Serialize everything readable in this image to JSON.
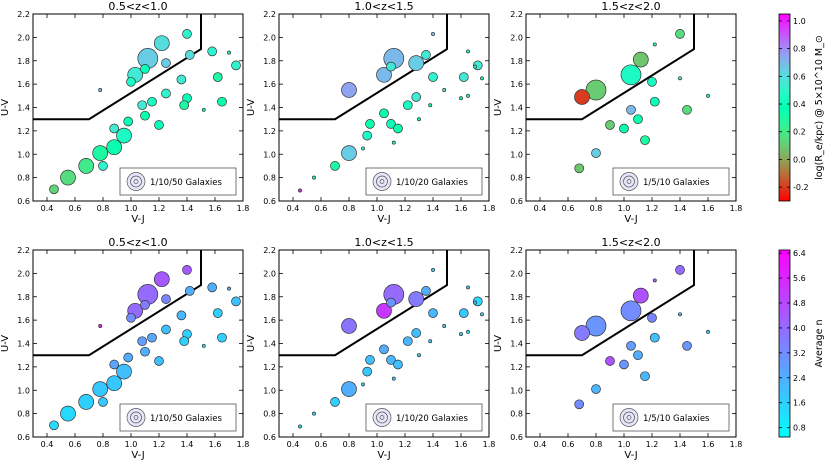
{
  "chart_data": {
    "type": "scatter",
    "figure": "UVJ diagram grid of stacked galaxy bins",
    "xlabel": "V-J",
    "ylabel": "U-V",
    "xlim": [
      0.3,
      1.8
    ],
    "ylim": [
      0.6,
      2.2
    ],
    "xticks": [
      "0.4",
      "0.6",
      "0.8",
      "1.0",
      "1.2",
      "1.4",
      "1.6",
      "1.8"
    ],
    "yticks": [
      "0.6",
      "0.8",
      "1.0",
      "1.2",
      "1.4",
      "1.6",
      "1.8",
      "2.0",
      "2.2"
    ],
    "quiescent_boundary": [
      [
        0.3,
        1.3
      ],
      [
        0.7,
        1.3
      ],
      [
        1.5,
        1.9
      ],
      [
        1.5,
        2.2
      ]
    ],
    "panels": [
      {
        "id": "top-1",
        "title": "0.5<z<1.0",
        "legend": "1/10/50 Galaxies",
        "row": 0,
        "col": 0,
        "cbar": "size",
        "points": [
          [
            0.45,
            0.7,
            1,
            0.12
          ],
          [
            0.55,
            0.8,
            2,
            0.15
          ],
          [
            0.68,
            0.9,
            2,
            0.2
          ],
          [
            0.78,
            1.01,
            2,
            0.3
          ],
          [
            0.88,
            1.06,
            2,
            0.35
          ],
          [
            0.95,
            1.16,
            2,
            0.45
          ],
          [
            0.8,
            0.9,
            1,
            0.5
          ],
          [
            0.98,
            1.28,
            1,
            0.4
          ],
          [
            0.88,
            1.22,
            1,
            0.55
          ],
          [
            1.1,
            1.33,
            1,
            0.35
          ],
          [
            1.15,
            1.45,
            1,
            0.45
          ],
          [
            1.08,
            1.42,
            1,
            0.55
          ],
          [
            1.2,
            1.25,
            1,
            0.4
          ],
          [
            1.25,
            1.52,
            1,
            0.5
          ],
          [
            1.4,
            1.48,
            1,
            0.4
          ],
          [
            1.36,
            1.64,
            1,
            0.55
          ],
          [
            1.38,
            1.42,
            1,
            0.3
          ],
          [
            1.52,
            1.38,
            0,
            0.35
          ],
          [
            1.65,
            1.45,
            1,
            0.35
          ],
          [
            1.03,
            1.68,
            2,
            0.55
          ],
          [
            1.0,
            1.62,
            1,
            0.45
          ],
          [
            1.1,
            1.73,
            1,
            0.4
          ],
          [
            1.22,
            1.95,
            2,
            0.6
          ],
          [
            1.25,
            1.78,
            1,
            0.65
          ],
          [
            1.12,
            1.82,
            3,
            0.65
          ],
          [
            1.42,
            1.85,
            1,
            0.6
          ],
          [
            1.4,
            2.03,
            1,
            0.5
          ],
          [
            1.58,
            1.88,
            1,
            0.5
          ],
          [
            1.7,
            1.87,
            0,
            0.45
          ],
          [
            1.75,
            1.76,
            1,
            0.5
          ],
          [
            1.62,
            1.66,
            1,
            0.3
          ],
          [
            0.78,
            1.55,
            0,
            0.7
          ]
        ]
      },
      {
        "id": "top-2",
        "title": "1.0<z<1.5",
        "legend": "1/10/20 Galaxies",
        "row": 0,
        "col": 1,
        "cbar": "size",
        "points": [
          [
            0.45,
            0.69,
            0,
            1.0
          ],
          [
            0.55,
            0.8,
            0,
            0.4
          ],
          [
            0.7,
            0.9,
            1,
            0.3
          ],
          [
            0.8,
            1.01,
            2,
            0.65
          ],
          [
            0.9,
            1.05,
            0,
            0.45
          ],
          [
            0.93,
            1.16,
            1,
            0.45
          ],
          [
            0.95,
            1.26,
            1,
            0.35
          ],
          [
            1.05,
            1.35,
            1,
            0.35
          ],
          [
            1.1,
            1.26,
            1,
            0.4
          ],
          [
            1.12,
            1.1,
            0,
            0.3
          ],
          [
            1.15,
            1.22,
            1,
            0.35
          ],
          [
            1.22,
            1.42,
            1,
            0.45
          ],
          [
            1.3,
            1.3,
            0,
            0.35
          ],
          [
            1.28,
            1.49,
            1,
            0.55
          ],
          [
            1.38,
            1.42,
            0,
            0.4
          ],
          [
            1.4,
            1.66,
            1,
            0.5
          ],
          [
            1.48,
            1.55,
            0,
            0.55
          ],
          [
            1.6,
            1.48,
            0,
            0.4
          ],
          [
            1.62,
            1.66,
            1,
            0.55
          ],
          [
            1.7,
            1.75,
            0,
            0.45
          ],
          [
            1.72,
            1.76,
            1,
            0.55
          ],
          [
            1.75,
            1.65,
            0,
            0.4
          ],
          [
            1.65,
            1.5,
            0,
            0.3
          ],
          [
            1.05,
            1.68,
            2,
            0.7
          ],
          [
            1.1,
            1.75,
            1,
            0.55
          ],
          [
            1.12,
            1.82,
            3,
            0.7
          ],
          [
            1.28,
            1.78,
            2,
            0.65
          ],
          [
            1.35,
            1.85,
            1,
            0.55
          ],
          [
            1.4,
            2.03,
            0,
            0.7
          ],
          [
            1.65,
            1.88,
            0,
            0.45
          ],
          [
            0.8,
            1.55,
            2,
            0.75
          ]
        ]
      },
      {
        "id": "top-3",
        "title": "1.5<z<2.0",
        "legend": "1/5/10 Galaxies",
        "row": 0,
        "col": 2,
        "cbar": "size",
        "points": [
          [
            0.68,
            0.88,
            1,
            0.08
          ],
          [
            0.8,
            1.01,
            1,
            0.65
          ],
          [
            0.9,
            1.25,
            1,
            0.1
          ],
          [
            1.0,
            1.22,
            1,
            0.35
          ],
          [
            1.05,
            1.38,
            1,
            0.7
          ],
          [
            1.1,
            1.3,
            1,
            0.35
          ],
          [
            1.15,
            1.12,
            1,
            0.3
          ],
          [
            1.22,
            1.45,
            1,
            0.4
          ],
          [
            1.2,
            1.62,
            1,
            0.45
          ],
          [
            1.4,
            1.65,
            0,
            0.55
          ],
          [
            1.45,
            1.38,
            1,
            0.15
          ],
          [
            1.6,
            1.5,
            0,
            0.35
          ],
          [
            0.7,
            1.49,
            2,
            -0.2
          ],
          [
            0.8,
            1.55,
            3,
            0.1
          ],
          [
            1.05,
            1.68,
            3,
            0.45
          ],
          [
            1.12,
            1.81,
            2,
            0.08
          ],
          [
            1.22,
            1.94,
            0,
            0.45
          ],
          [
            1.4,
            2.03,
            1,
            0.15
          ]
        ]
      },
      {
        "id": "bottom-1",
        "title": "0.5<z<1.0",
        "legend": "1/10/50 Galaxies",
        "row": 1,
        "col": 0,
        "cbar": "n",
        "points": [
          [
            0.45,
            0.7,
            1,
            1.4
          ],
          [
            0.55,
            0.8,
            2,
            1.4
          ],
          [
            0.68,
            0.9,
            2,
            1.6
          ],
          [
            0.78,
            1.01,
            2,
            1.8
          ],
          [
            0.88,
            1.06,
            2,
            1.8
          ],
          [
            0.95,
            1.16,
            2,
            2.0
          ],
          [
            0.8,
            0.9,
            1,
            1.8
          ],
          [
            0.98,
            1.28,
            1,
            2.4
          ],
          [
            0.88,
            1.22,
            1,
            2.6
          ],
          [
            1.1,
            1.33,
            1,
            2.4
          ],
          [
            1.15,
            1.45,
            1,
            2.6
          ],
          [
            1.08,
            1.42,
            1,
            2.8
          ],
          [
            1.2,
            1.25,
            1,
            2.0
          ],
          [
            1.25,
            1.52,
            1,
            2.0
          ],
          [
            1.4,
            1.48,
            1,
            1.6
          ],
          [
            1.36,
            1.64,
            1,
            2.2
          ],
          [
            1.38,
            1.42,
            1,
            1.6
          ],
          [
            1.52,
            1.38,
            0,
            1.4
          ],
          [
            1.65,
            1.45,
            1,
            1.6
          ],
          [
            1.03,
            1.68,
            2,
            4.0
          ],
          [
            1.0,
            1.62,
            1,
            3.2
          ],
          [
            1.1,
            1.73,
            1,
            3.6
          ],
          [
            1.22,
            1.95,
            2,
            4.4
          ],
          [
            1.25,
            1.78,
            1,
            3.4
          ],
          [
            1.12,
            1.82,
            3,
            4.0
          ],
          [
            1.42,
            1.85,
            1,
            2.4
          ],
          [
            1.4,
            2.03,
            1,
            4.4
          ],
          [
            1.58,
            1.88,
            1,
            2.4
          ],
          [
            1.7,
            1.87,
            0,
            2.4
          ],
          [
            1.75,
            1.76,
            1,
            2.0
          ],
          [
            1.62,
            1.66,
            1,
            1.6
          ],
          [
            0.78,
            1.55,
            0,
            6.0
          ]
        ]
      },
      {
        "id": "bottom-2",
        "title": "1.0<z<1.5",
        "legend": "1/10/20 Galaxies",
        "row": 1,
        "col": 1,
        "cbar": "n",
        "points": [
          [
            0.45,
            0.69,
            0,
            1.2
          ],
          [
            0.55,
            0.8,
            0,
            1.4
          ],
          [
            0.7,
            0.9,
            1,
            1.6
          ],
          [
            0.8,
            1.01,
            2,
            2.4
          ],
          [
            0.9,
            1.05,
            0,
            1.6
          ],
          [
            0.93,
            1.16,
            1,
            1.8
          ],
          [
            0.95,
            1.26,
            1,
            2.0
          ],
          [
            1.05,
            1.35,
            1,
            2.4
          ],
          [
            1.1,
            1.26,
            1,
            2.2
          ],
          [
            1.12,
            1.1,
            0,
            1.6
          ],
          [
            1.15,
            1.22,
            1,
            2.0
          ],
          [
            1.22,
            1.42,
            1,
            2.2
          ],
          [
            1.3,
            1.3,
            0,
            1.6
          ],
          [
            1.28,
            1.49,
            1,
            2.0
          ],
          [
            1.38,
            1.42,
            0,
            1.8
          ],
          [
            1.4,
            1.66,
            1,
            2.2
          ],
          [
            1.48,
            1.55,
            0,
            1.6
          ],
          [
            1.6,
            1.48,
            0,
            1.4
          ],
          [
            1.62,
            1.66,
            1,
            1.8
          ],
          [
            1.7,
            1.75,
            0,
            1.8
          ],
          [
            1.72,
            1.76,
            1,
            1.4
          ],
          [
            1.75,
            1.65,
            0,
            1.6
          ],
          [
            1.65,
            1.5,
            0,
            1.2
          ],
          [
            1.05,
            1.68,
            2,
            5.2
          ],
          [
            1.1,
            1.75,
            1,
            3.0
          ],
          [
            1.12,
            1.82,
            3,
            4.0
          ],
          [
            1.28,
            1.78,
            2,
            3.6
          ],
          [
            1.35,
            1.85,
            1,
            2.4
          ],
          [
            1.4,
            2.03,
            0,
            2.0
          ],
          [
            1.65,
            1.88,
            0,
            2.0
          ],
          [
            0.8,
            1.55,
            2,
            3.8
          ]
        ]
      },
      {
        "id": "bottom-3",
        "title": "1.5<z<2.0",
        "legend": "1/5/10 Galaxies",
        "row": 1,
        "col": 2,
        "cbar": "n",
        "points": [
          [
            0.68,
            0.88,
            1,
            3.2
          ],
          [
            0.8,
            1.01,
            1,
            2.2
          ],
          [
            0.9,
            1.25,
            1,
            4.6
          ],
          [
            1.0,
            1.22,
            1,
            3.0
          ],
          [
            1.05,
            1.38,
            1,
            2.8
          ],
          [
            1.1,
            1.3,
            1,
            2.4
          ],
          [
            1.15,
            1.12,
            1,
            2.2
          ],
          [
            1.22,
            1.45,
            1,
            2.0
          ],
          [
            1.2,
            1.62,
            1,
            3.4
          ],
          [
            1.4,
            1.65,
            0,
            2.2
          ],
          [
            1.45,
            1.38,
            1,
            3.0
          ],
          [
            1.6,
            1.5,
            0,
            1.6
          ],
          [
            0.7,
            1.49,
            2,
            3.6
          ],
          [
            0.8,
            1.55,
            3,
            3.0
          ],
          [
            1.05,
            1.68,
            3,
            3.2
          ],
          [
            1.12,
            1.81,
            2,
            4.6
          ],
          [
            1.22,
            1.94,
            0,
            4.4
          ],
          [
            1.4,
            2.03,
            1,
            4.0
          ]
        ]
      }
    ],
    "colorbars": {
      "size": {
        "label": "log(R_e/kpc) @ 5×10^10 M_⊙",
        "min": -0.3,
        "max": 1.05,
        "ticks": [
          "-0.2",
          "0.0",
          "0.2",
          "0.4",
          "0.6",
          "0.8",
          "1.0"
        ],
        "tick_values": [
          -0.2,
          0.0,
          0.2,
          0.4,
          0.6,
          0.8,
          1.0
        ]
      },
      "n": {
        "label": "Average n",
        "min": 0.5,
        "max": 6.5,
        "ticks": [
          "0.8",
          "1.6",
          "2.4",
          "3.2",
          "4.0",
          "4.8",
          "5.6",
          "6.4"
        ],
        "tick_values": [
          0.8,
          1.6,
          2.4,
          3.2,
          4.0,
          4.8,
          5.6,
          6.4
        ]
      }
    },
    "point_encoding": "[V-J, U-V, size class (0=small,1=medium,2=large,3=largest), colour value]",
    "colors": {
      "boundary": "#000000",
      "marker_edge": "#333333",
      "legend_edge": "#555555"
    }
  }
}
